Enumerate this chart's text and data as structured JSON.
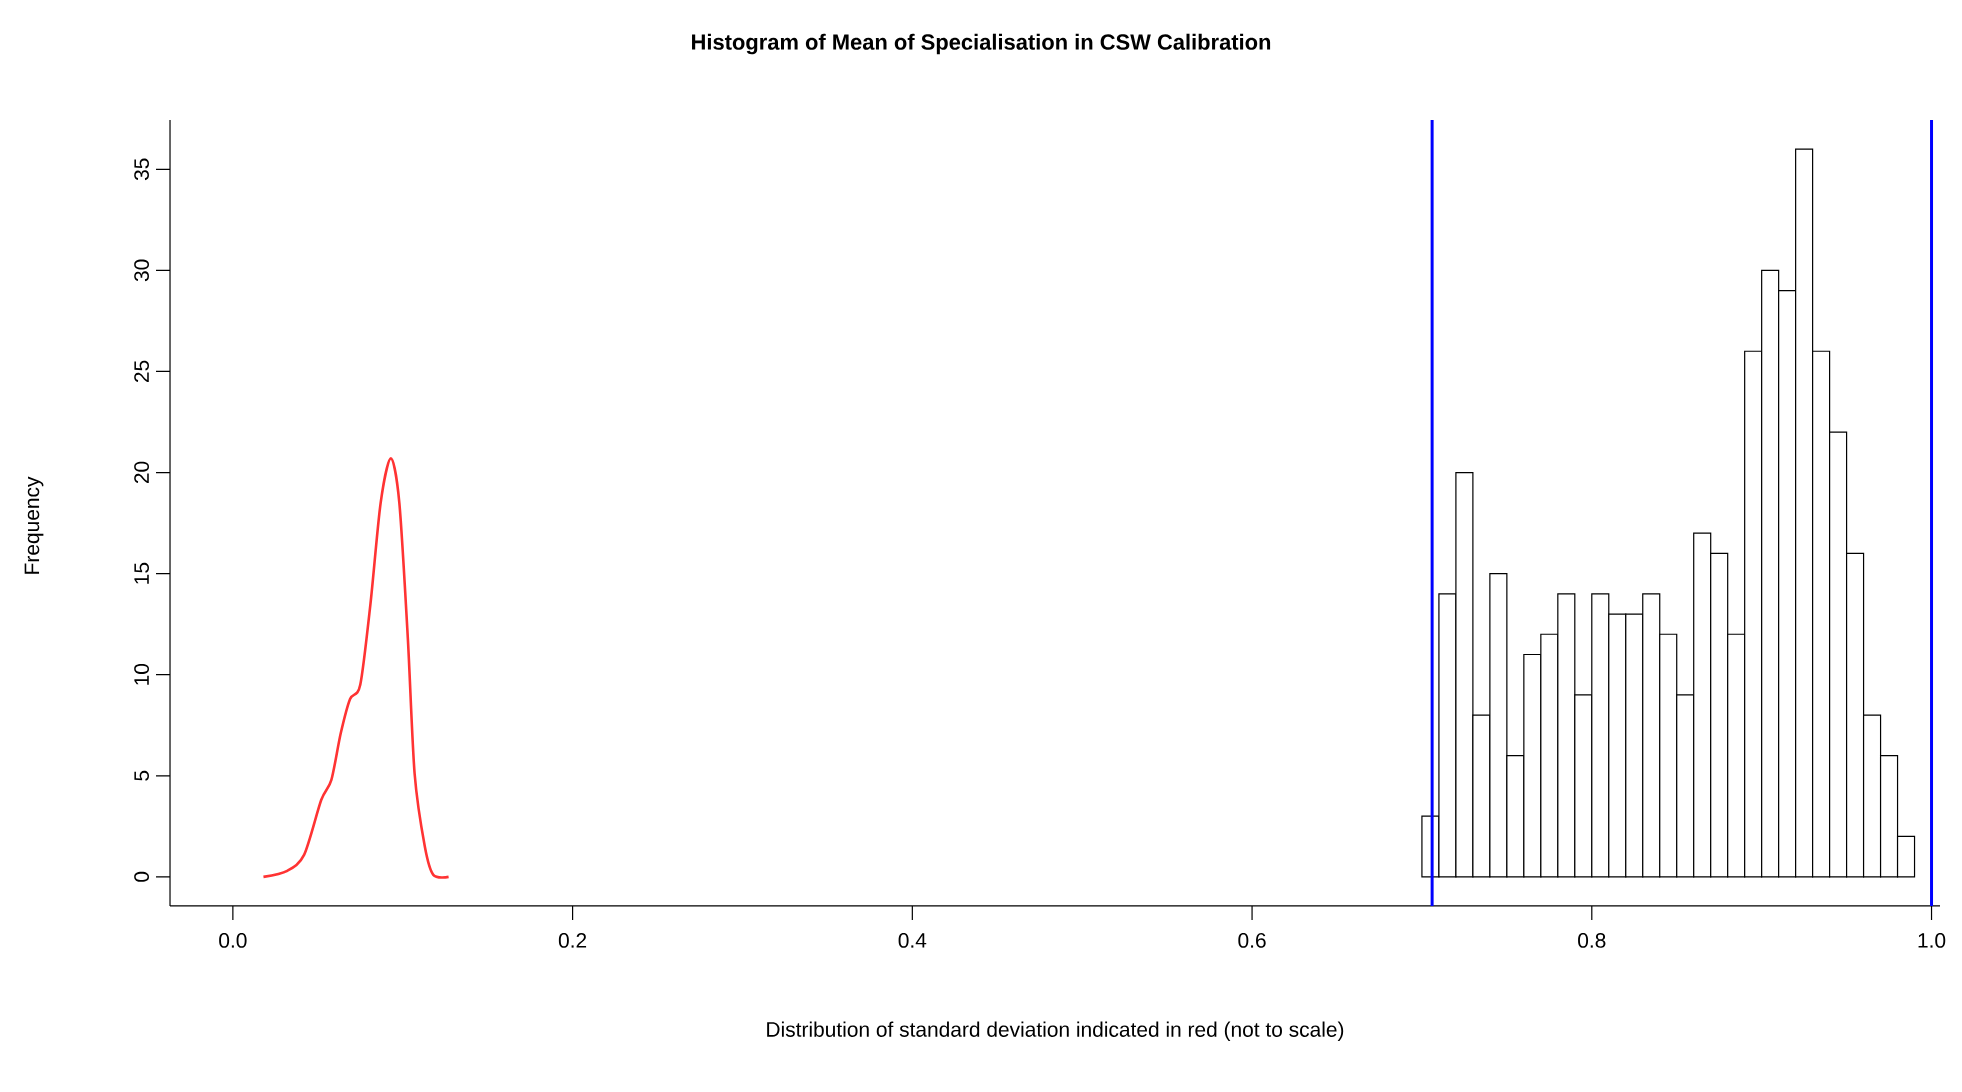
{
  "chart_data": {
    "type": "histogram",
    "title": "Histogram of Mean of Specialisation in CSW Calibration",
    "xlabel": "Distribution of standard deviation indicated in red (not to scale)",
    "ylabel": "Frequency",
    "bins": [
      0.7,
      0.71,
      0.72,
      0.73,
      0.74,
      0.75,
      0.76,
      0.77,
      0.78,
      0.79,
      0.8,
      0.81,
      0.82,
      0.83,
      0.84,
      0.85,
      0.86,
      0.87,
      0.88,
      0.89,
      0.9,
      0.91,
      0.92,
      0.93,
      0.94,
      0.95,
      0.96,
      0.97,
      0.98,
      0.99
    ],
    "values": [
      3,
      14,
      20,
      8,
      15,
      6,
      11,
      12,
      14,
      9,
      14,
      13,
      13,
      14,
      12,
      9,
      17,
      16,
      12,
      26,
      30,
      29,
      36,
      26,
      22,
      16,
      8,
      6,
      2
    ],
    "color": "#ffffff",
    "series": [
      {
        "type": "line",
        "color": "#ff3333",
        "x": [
          0.018,
          0.032,
          0.042,
          0.052,
          0.058,
          0.0635,
          0.069,
          0.075,
          0.081,
          0.087,
          0.093,
          0.098,
          0.103,
          0.107,
          0.113,
          0.118,
          0.127
        ],
        "values": [
          0,
          0.3,
          1.1,
          3.8,
          4.8,
          7.1,
          8.8,
          9.5,
          13.5,
          18.5,
          20.7,
          18.5,
          11.8,
          5.1,
          1.5,
          0.1,
          0
        ]
      }
    ],
    "ref_lines": [
      {
        "axis": "x",
        "value": 0.706,
        "color": "#0000ff"
      },
      {
        "axis": "x",
        "value": 1.0,
        "color": "#0000ff"
      }
    ],
    "xlim": [
      -0.037,
      1.005
    ],
    "ylim": [
      -1.44,
      37.44
    ],
    "xticks": [
      {
        "value": 0,
        "label": "0.0"
      },
      {
        "value": 0.2,
        "label": "0.2"
      },
      {
        "value": 0.4,
        "label": "0.4"
      },
      {
        "value": 0.6,
        "label": "0.6"
      },
      {
        "value": 0.8,
        "label": "0.8"
      },
      {
        "value": 1.0,
        "label": "1.0"
      }
    ],
    "yticks": [
      0,
      5,
      10,
      15,
      20,
      25,
      30,
      35
    ]
  }
}
